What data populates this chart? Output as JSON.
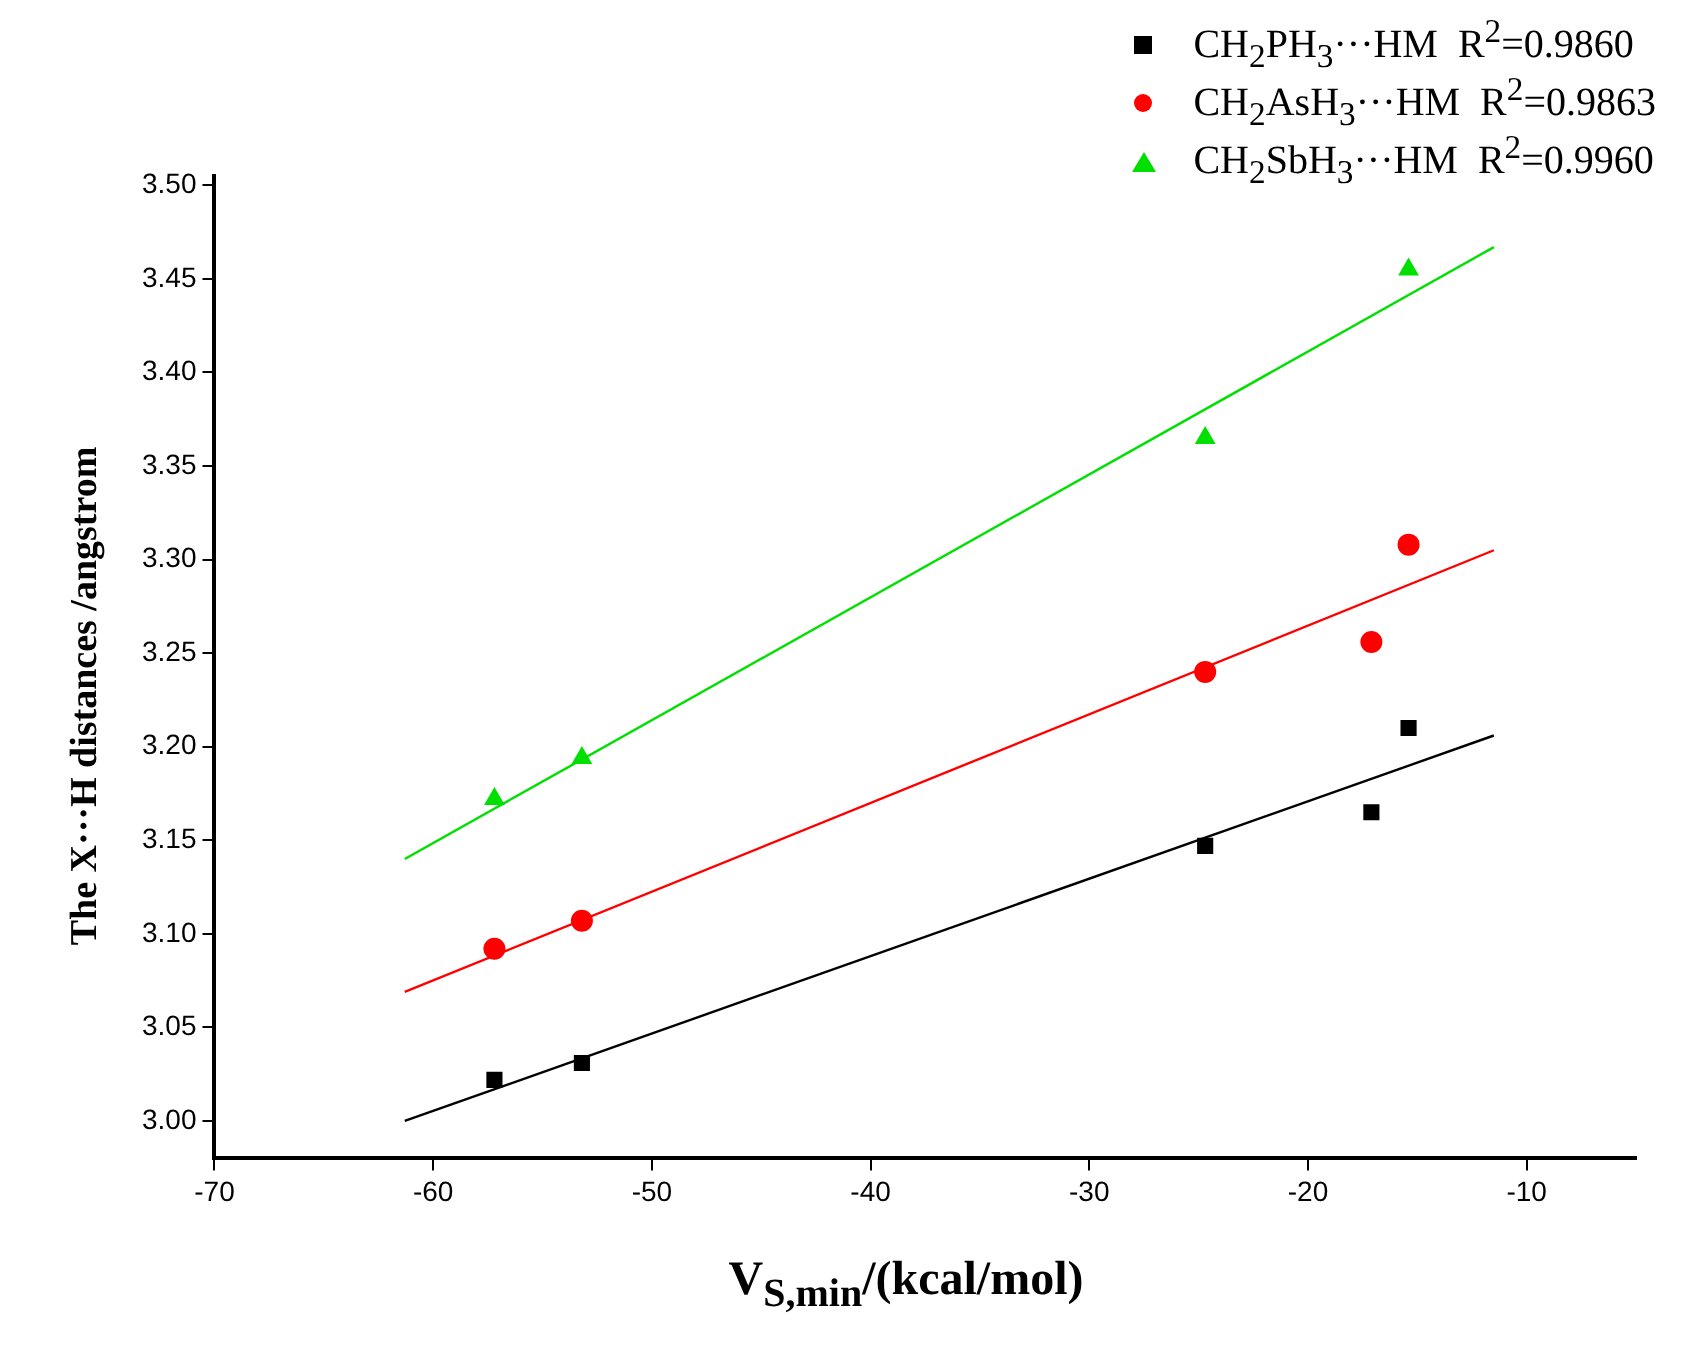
{
  "chart_data": {
    "type": "scatter",
    "xlabel": "V$_{S,min}$/(kcal/mol)",
    "ylabel": "The X···H distances /angstrom",
    "xlim": [
      -70,
      -5
    ],
    "xticks": [
      -70,
      -60,
      -50,
      -40,
      -30,
      -20,
      -10
    ],
    "ylim": [
      2.98,
      3.505
    ],
    "yticks": [
      {
        "value": 3,
        "label": "3.00"
      },
      3.05,
      {
        "value": 3.1,
        "label": "3.10"
      },
      3.15,
      {
        "value": 3.2,
        "label": "3.20"
      },
      3.25,
      {
        "value": 3.3,
        "label": "3.30"
      },
      3.35,
      {
        "value": 3.4,
        "label": "3.40"
      },
      3.45,
      {
        "value": 3.5,
        "label": "3.50"
      }
    ],
    "grid": false,
    "legend": "top right",
    "series": [
      {
        "name": "CH$_{2}$PH$_{3}$···HM  R$^{2}$=0.9860",
        "color": "#000000",
        "marker": "square",
        "x": [
          -57.2,
          -53.2,
          -24.7,
          -17.1,
          -15.4
        ],
        "values": [
          3.022,
          3.031,
          3.147,
          3.165,
          3.21
        ]
      },
      {
        "name": "CH$_{2}$AsH$_{3}$···HM  R$^{2}$=0.9863",
        "color": "#ff0000",
        "marker": "circle",
        "x": [
          -57.2,
          -53.2,
          -24.7,
          -17.1,
          -15.4
        ],
        "values": [
          3.092,
          3.107,
          3.24,
          3.256,
          3.308
        ]
      },
      {
        "name": "CH$_{2}$SbH$_{3}$···HM  R$^{2}$=0.9960",
        "color": "#00e000",
        "marker": "triangle",
        "x": [
          -57.2,
          -53.2,
          -24.7,
          -15.4
        ],
        "values": [
          3.172,
          3.194,
          3.365,
          3.455
        ]
      },
      {
        "type": "line",
        "color": "#000000",
        "marker": "none",
        "x": [
          -61.3,
          -11.5
        ],
        "values": [
          3.0,
          3.206
        ]
      },
      {
        "type": "line",
        "color": "#ff0000",
        "marker": "none",
        "x": [
          -61.3,
          -11.5
        ],
        "values": [
          3.069,
          3.305
        ]
      },
      {
        "type": "line",
        "color": "#00e000",
        "marker": "none",
        "x": [
          -61.3,
          -11.5
        ],
        "values": [
          3.14,
          3.467
        ]
      }
    ]
  }
}
